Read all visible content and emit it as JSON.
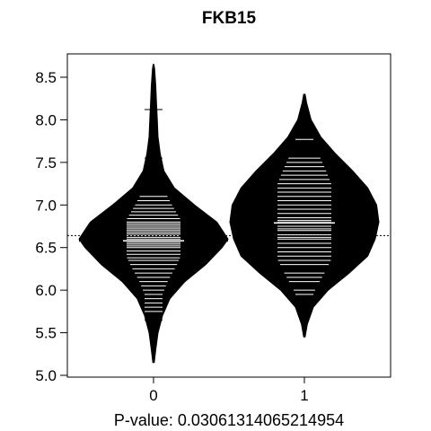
{
  "chart_data": {
    "type": "beanplot",
    "title": "FKB15",
    "subtitle": "P-value: 0.03061314065214954",
    "xlabel": "",
    "ylabel": "",
    "ylim": [
      5.0,
      8.6
    ],
    "yticks": [
      5.0,
      5.5,
      6.0,
      6.5,
      7.0,
      7.5,
      8.0,
      8.5
    ],
    "ytick_labels": [
      "5.0",
      "5.5",
      "6.0",
      "6.5",
      "7.0",
      "7.5",
      "8.0",
      "8.5"
    ],
    "categories": [
      "0",
      "1"
    ],
    "overall_mean": 6.64,
    "groups": [
      {
        "name": "0",
        "mean": 6.58,
        "range": [
          5.15,
          8.65
        ],
        "density": [
          [
            5.15,
            0.01
          ],
          [
            5.3,
            0.03
          ],
          [
            5.5,
            0.06
          ],
          [
            5.7,
            0.12
          ],
          [
            5.9,
            0.22
          ],
          [
            6.1,
            0.42
          ],
          [
            6.3,
            0.7
          ],
          [
            6.5,
            0.92
          ],
          [
            6.6,
            1.0
          ],
          [
            6.8,
            0.85
          ],
          [
            7.0,
            0.55
          ],
          [
            7.2,
            0.28
          ],
          [
            7.4,
            0.14
          ],
          [
            7.6,
            0.09
          ],
          [
            7.8,
            0.06
          ],
          [
            8.0,
            0.05
          ],
          [
            8.2,
            0.04
          ],
          [
            8.4,
            0.03
          ],
          [
            8.6,
            0.015
          ],
          [
            8.65,
            0.005
          ]
        ],
        "observations": [
          5.65,
          5.7,
          5.75,
          5.8,
          5.85,
          5.9,
          5.95,
          6.0,
          6.05,
          6.1,
          6.15,
          6.2,
          6.25,
          6.3,
          6.35,
          6.38,
          6.42,
          6.46,
          6.5,
          6.52,
          6.54,
          6.56,
          6.58,
          6.6,
          6.62,
          6.64,
          6.66,
          6.68,
          6.7,
          6.72,
          6.74,
          6.76,
          6.78,
          6.8,
          6.84,
          6.88,
          6.92,
          6.96,
          7.0,
          7.05,
          7.1,
          7.4,
          7.45,
          7.5,
          7.55,
          8.12
        ]
      },
      {
        "name": "1",
        "mean": 6.79,
        "range": [
          5.45,
          8.3
        ],
        "density": [
          [
            5.45,
            0.01
          ],
          [
            5.6,
            0.04
          ],
          [
            5.8,
            0.12
          ],
          [
            6.0,
            0.32
          ],
          [
            6.2,
            0.6
          ],
          [
            6.4,
            0.85
          ],
          [
            6.6,
            0.95
          ],
          [
            6.8,
            1.0
          ],
          [
            7.0,
            0.97
          ],
          [
            7.2,
            0.85
          ],
          [
            7.4,
            0.65
          ],
          [
            7.6,
            0.42
          ],
          [
            7.8,
            0.22
          ],
          [
            8.0,
            0.09
          ],
          [
            8.2,
            0.03
          ],
          [
            8.3,
            0.01
          ]
        ],
        "observations": [
          5.95,
          6.0,
          6.1,
          6.15,
          6.2,
          6.3,
          6.35,
          6.4,
          6.45,
          6.5,
          6.55,
          6.6,
          6.62,
          6.65,
          6.7,
          6.72,
          6.75,
          6.8,
          6.82,
          6.85,
          6.9,
          6.95,
          7.0,
          7.05,
          7.1,
          7.15,
          7.2,
          7.25,
          7.3,
          7.35,
          7.4,
          7.45,
          7.5,
          7.55,
          7.77
        ]
      }
    ],
    "colors": {
      "bean": "#000000",
      "lines": "#ffffff",
      "axis": "#000000"
    }
  }
}
